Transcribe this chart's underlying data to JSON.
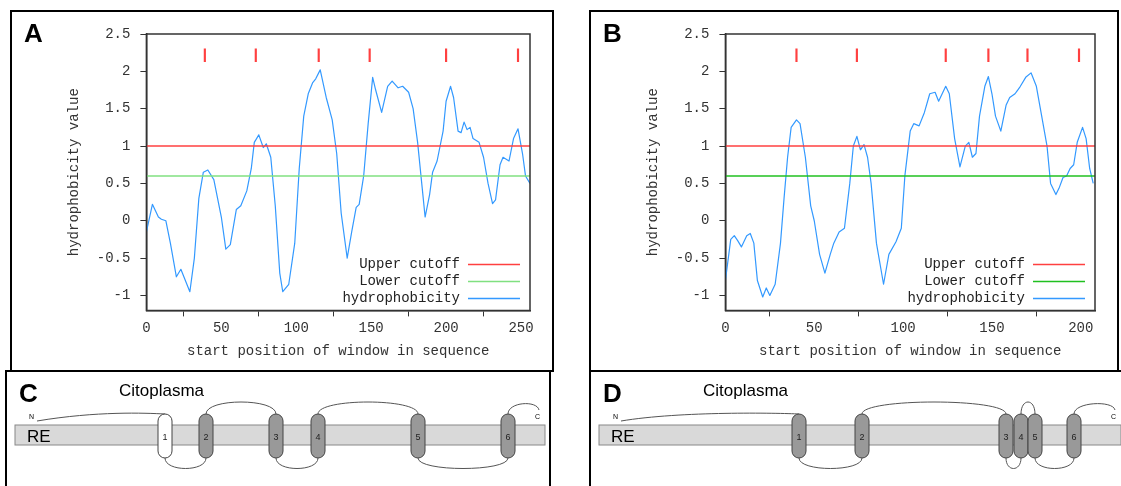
{
  "chart_data": [
    {
      "type": "line",
      "title": "A",
      "xlabel": "start position of window in sequence",
      "ylabel": "hydrophobicity value",
      "xlim": [
        0,
        256
      ],
      "xticks": [
        0,
        50,
        100,
        150,
        200,
        250
      ],
      "ylim": [
        -1.2,
        2.5
      ],
      "yticks": [
        -1,
        -0.5,
        0,
        0.5,
        1,
        1.5,
        2,
        2.5
      ],
      "grid": false,
      "legend": "bottom right",
      "line_style": "solid",
      "ref_lines": [
        {
          "axis": "y",
          "value": 1,
          "label": "Upper cutoff",
          "color": "#ff4040"
        },
        {
          "axis": "y",
          "value": 0.6,
          "label": "Lower cutoff",
          "color": "#80e080"
        }
      ],
      "series": [
        {
          "name": "hydrophobicity",
          "color": "#3399ff",
          "marker": "none",
          "x": [
            0,
            4,
            8,
            10,
            13,
            16,
            20,
            23,
            25,
            29,
            32,
            35,
            38,
            41,
            45,
            50,
            53,
            56,
            60,
            63,
            67,
            70,
            72,
            75,
            78,
            80,
            83,
            86,
            89,
            91,
            95,
            99,
            102,
            105,
            108,
            111,
            113,
            116,
            120,
            124,
            127,
            130,
            134,
            137,
            140,
            142,
            145,
            148,
            151,
            153,
            157,
            161,
            164,
            168,
            171,
            175,
            178,
            181,
            184,
            186,
            189,
            191,
            194,
            198,
            200,
            203,
            205,
            208,
            210,
            212,
            214,
            216,
            218,
            222,
            225,
            228,
            231,
            233,
            236,
            238,
            242,
            245,
            248,
            251,
            253,
            256
          ],
          "values": [
            -0.15,
            0.22,
            0.05,
            0.02,
            0,
            -0.3,
            -0.75,
            -0.65,
            -0.75,
            -0.95,
            -0.5,
            0.3,
            0.65,
            0.68,
            0.55,
            0.05,
            -0.38,
            -0.32,
            0.15,
            0.2,
            0.4,
            0.7,
            1.05,
            1.15,
            0.98,
            1.03,
            0.85,
            0.2,
            -0.7,
            -0.95,
            -0.85,
            -0.3,
            0.7,
            1.4,
            1.7,
            1.85,
            1.9,
            2.02,
            1.65,
            1.35,
            0.9,
            0.1,
            -0.5,
            -0.15,
            0.18,
            0.22,
            0.6,
            1.3,
            1.92,
            1.75,
            1.45,
            1.8,
            1.87,
            1.78,
            1.8,
            1.72,
            1.5,
            1.05,
            0.45,
            0.05,
            0.35,
            0.65,
            0.8,
            1.2,
            1.6,
            1.8,
            1.65,
            1.2,
            1.18,
            1.32,
            1.22,
            1.25,
            1.1,
            1.05,
            0.85,
            0.5,
            0.23,
            0.28,
            0.75,
            0.85,
            0.8,
            1.1,
            1.23,
            0.9,
            0.6,
            0.5
          ]
        },
        {
          "type": "bar",
          "color": "#ff4040",
          "x": [
            39,
            73,
            115,
            149,
            200,
            248
          ],
          "base": [
            2.13,
            2.13,
            2.13,
            2.13,
            2.13,
            2.13
          ],
          "values": [
            0.17,
            0.17,
            0.17,
            0.17,
            0.17,
            0.17
          ]
        }
      ]
    },
    {
      "type": "line",
      "title": "B",
      "xlabel": "start position of window in sequence",
      "ylabel": "hydrophobicity value",
      "xlim": [
        0,
        208
      ],
      "xticks": [
        0,
        50,
        100,
        150,
        200
      ],
      "ylim": [
        -1.2,
        2.5
      ],
      "yticks": [
        -1,
        -0.5,
        0,
        0.5,
        1,
        1.5,
        2,
        2.5
      ],
      "grid": false,
      "legend": "bottom right",
      "line_style": "solid",
      "ref_lines": [
        {
          "axis": "y",
          "value": 1,
          "label": "Upper cutoff",
          "color": "#ff4040"
        },
        {
          "axis": "y",
          "value": 0.6,
          "label": "Lower cutoff",
          "color": "#20c020"
        }
      ],
      "series": [
        {
          "name": "hydrophobicity",
          "color": "#3399ff",
          "marker": "none",
          "x": [
            0,
            3,
            5,
            7,
            9,
            12,
            14,
            16,
            18,
            21,
            23,
            25,
            28,
            31,
            33,
            35,
            37,
            40,
            42,
            45,
            48,
            50,
            53,
            56,
            59,
            61,
            64,
            67,
            70,
            72,
            74,
            76,
            78,
            80,
            82,
            85,
            89,
            92,
            96,
            99,
            101,
            104,
            106,
            109,
            112,
            115,
            118,
            120,
            122,
            124,
            126,
            129,
            132,
            135,
            137,
            139,
            141,
            143,
            146,
            148,
            150,
            152,
            155,
            158,
            160,
            163,
            166,
            169,
            172,
            175,
            178,
            181,
            183,
            186,
            188,
            190,
            192,
            194,
            196,
            198,
            201,
            203,
            205,
            207
          ],
          "values": [
            -0.8,
            -0.25,
            -0.2,
            -0.27,
            -0.35,
            -0.2,
            -0.17,
            -0.3,
            -0.8,
            -1.02,
            -0.9,
            -1,
            -0.85,
            -0.3,
            0.3,
            0.85,
            1.25,
            1.35,
            1.3,
            0.85,
            0.2,
            0,
            -0.45,
            -0.7,
            -0.45,
            -0.3,
            -0.15,
            -0.1,
            0.5,
            1,
            1.13,
            0.95,
            1.02,
            0.85,
            0.5,
            -0.3,
            -0.85,
            -0.45,
            -0.28,
            -0.1,
            0.6,
            1.2,
            1.3,
            1.27,
            1.45,
            1.7,
            1.72,
            1.6,
            1.7,
            1.8,
            1.7,
            1.1,
            0.72,
            1,
            1.05,
            0.85,
            0.9,
            1.4,
            1.8,
            1.93,
            1.7,
            1.4,
            1.2,
            1.55,
            1.65,
            1.7,
            1.8,
            1.92,
            1.98,
            1.8,
            1.4,
            1,
            0.5,
            0.35,
            0.45,
            0.58,
            0.6,
            0.7,
            0.75,
            1.05,
            1.25,
            1.1,
            0.7,
            0.5
          ]
        },
        {
          "type": "bar",
          "color": "#ff4040",
          "x": [
            40,
            74,
            124,
            148,
            170,
            199
          ],
          "base": [
            2.13,
            2.13,
            2.13,
            2.13,
            2.13,
            2.13
          ],
          "values": [
            0.17,
            0.17,
            0.17,
            0.17,
            0.17,
            0.17
          ]
        }
      ]
    },
    {
      "type": "other",
      "title": "C",
      "annotations": [
        "Citoplasma",
        "RE",
        "N",
        "C",
        "1",
        "2",
        "3",
        "4",
        "5",
        "6"
      ]
    },
    {
      "type": "other",
      "title": "D",
      "annotations": [
        "Citoplasma",
        "RE",
        "N",
        "C",
        "1",
        "2",
        "3",
        "4",
        "5",
        "6"
      ]
    }
  ]
}
